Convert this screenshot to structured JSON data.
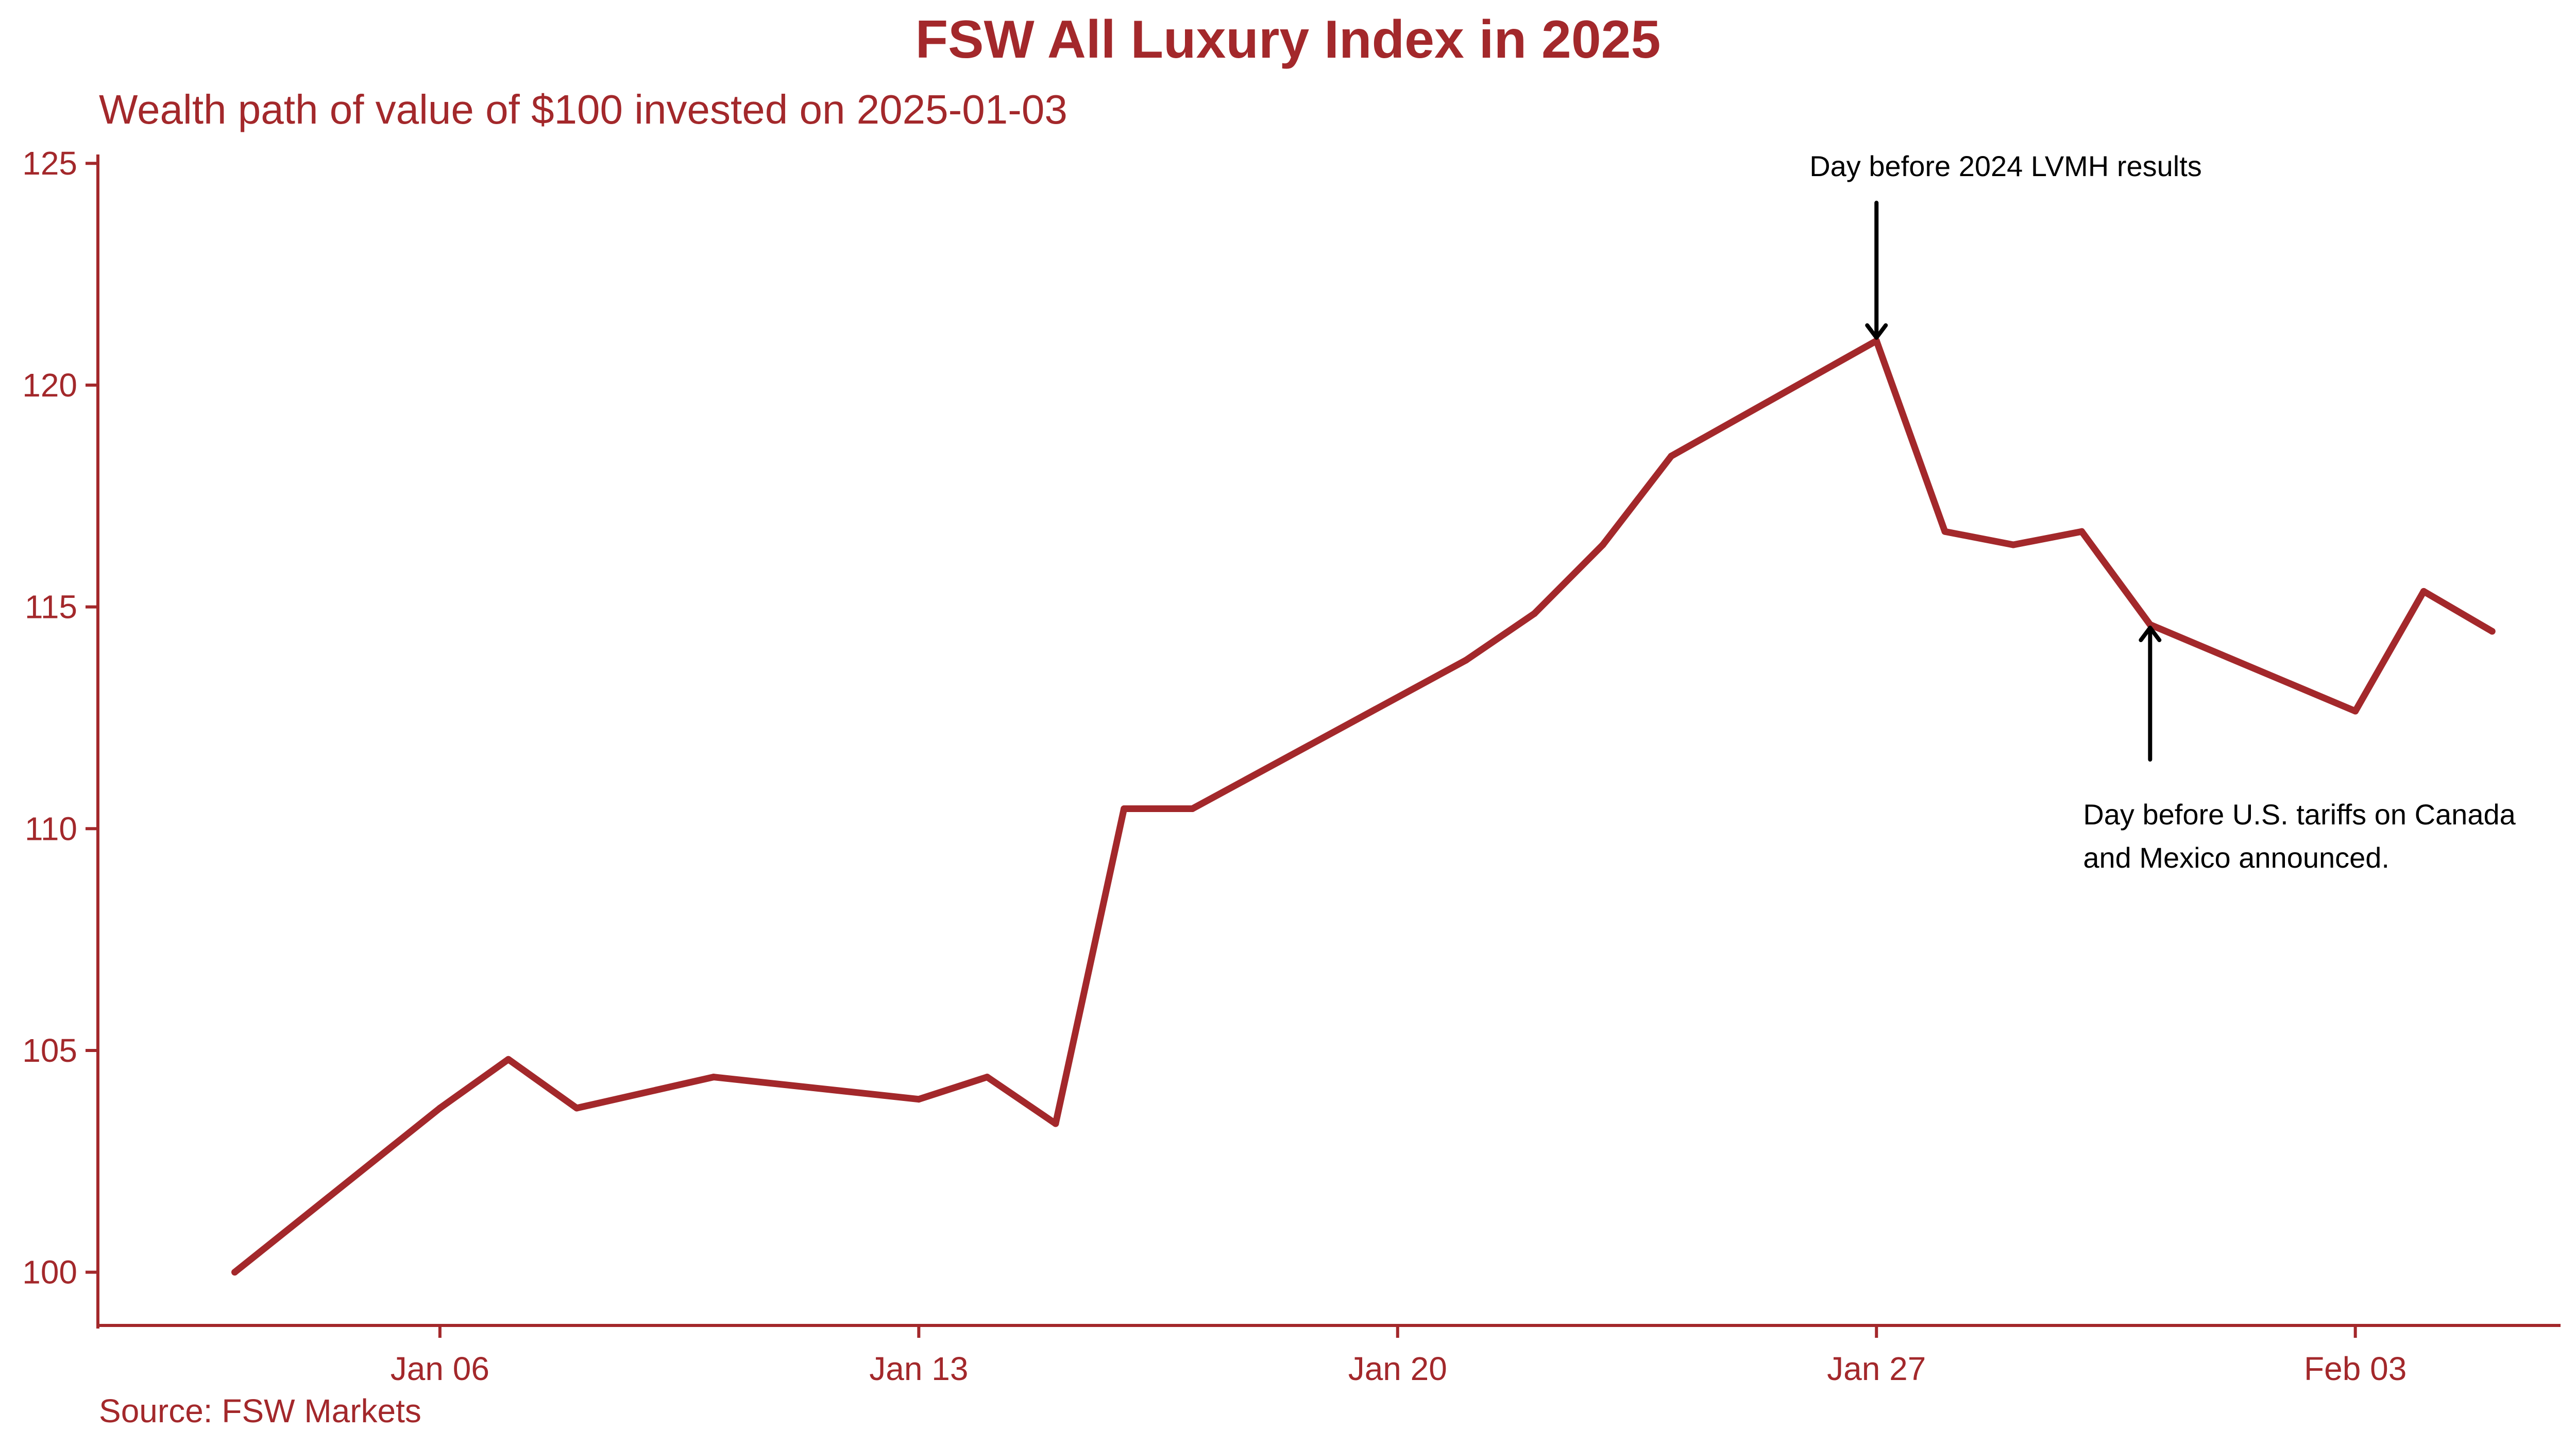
{
  "chart_data": {
    "type": "line",
    "title": "FSW All Luxury Index in 2025",
    "subtitle": "Wealth path of value of $100 invested on 2025-01-03",
    "source": "Source: FSW Markets",
    "xlabel": "",
    "ylabel": "",
    "colors": {
      "accent": "#A3282B",
      "annotation": "#000000"
    },
    "xlim": [
      "2025-01-01",
      "2025-02-06"
    ],
    "ylim": [
      98.8,
      125.2
    ],
    "grid": false,
    "legend": "none",
    "x_ticks": [
      {
        "date": "2025-01-06",
        "label": "Jan 06"
      },
      {
        "date": "2025-01-13",
        "label": "Jan 13"
      },
      {
        "date": "2025-01-20",
        "label": "Jan 20"
      },
      {
        "date": "2025-01-27",
        "label": "Jan 27"
      },
      {
        "date": "2025-02-03",
        "label": "Feb 03"
      }
    ],
    "y_ticks": [
      {
        "value": 100,
        "label": "100"
      },
      {
        "value": 105,
        "label": "105"
      },
      {
        "value": 110,
        "label": "110"
      },
      {
        "value": 115,
        "label": "115"
      },
      {
        "value": 120,
        "label": "120"
      },
      {
        "value": 125,
        "label": "125"
      }
    ],
    "series": [
      {
        "x": [
          "2025-01-03",
          "2025-01-06",
          "2025-01-07",
          "2025-01-08",
          "2025-01-10",
          "2025-01-13",
          "2025-01-14",
          "2025-01-15",
          "2025-01-16",
          "2025-01-17",
          "2025-01-21",
          "2025-01-22",
          "2025-01-23",
          "2025-01-24",
          "2025-01-27",
          "2025-01-28",
          "2025-01-29",
          "2025-01-30",
          "2025-01-31",
          "2025-02-03",
          "2025-02-04",
          "2025-02-05"
        ],
        "values": [
          100.0,
          103.7,
          104.8,
          103.7,
          104.4,
          103.9,
          104.4,
          103.35,
          110.45,
          110.45,
          113.8,
          114.85,
          116.4,
          118.4,
          121.0,
          116.7,
          116.4,
          116.7,
          114.6,
          112.65,
          115.35,
          114.45
        ]
      }
    ],
    "annotations": [
      {
        "lines": [
          "Day before 2024 LVMH results"
        ],
        "x": "2025-01-27",
        "y": 121.0,
        "direction": "down"
      },
      {
        "lines": [
          "Day before U.S. tariffs on Canada",
          "and Mexico announced."
        ],
        "x": "2025-01-31",
        "y": 114.6,
        "direction": "up"
      }
    ]
  }
}
